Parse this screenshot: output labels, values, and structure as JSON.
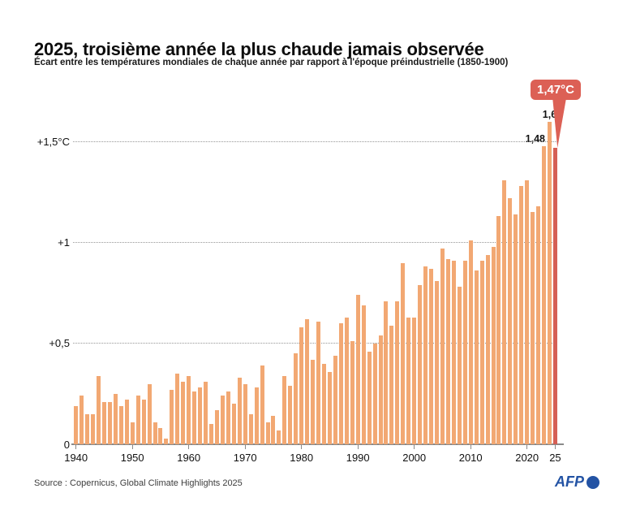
{
  "chart_data": {
    "type": "bar",
    "title": "2025, troisième année la plus chaude jamais observée",
    "subtitle": "Écart entre les températures mondiales de chaque année par rapport à l'époque préindustrielle (1850-1900)",
    "unit": "°C",
    "start_year": 1940,
    "end_year": 2025,
    "values": [
      0.19,
      0.24,
      0.15,
      0.15,
      0.34,
      0.21,
      0.21,
      0.25,
      0.19,
      0.22,
      0.11,
      0.24,
      0.22,
      0.3,
      0.11,
      0.08,
      0.03,
      0.27,
      0.35,
      0.31,
      0.34,
      0.26,
      0.28,
      0.31,
      0.1,
      0.17,
      0.24,
      0.26,
      0.2,
      0.33,
      0.3,
      0.15,
      0.28,
      0.39,
      0.11,
      0.14,
      0.07,
      0.34,
      0.29,
      0.45,
      0.58,
      0.62,
      0.42,
      0.61,
      0.4,
      0.36,
      0.44,
      0.6,
      0.63,
      0.51,
      0.74,
      0.69,
      0.46,
      0.5,
      0.54,
      0.71,
      0.59,
      0.71,
      0.9,
      0.63,
      0.63,
      0.79,
      0.88,
      0.87,
      0.81,
      0.97,
      0.92,
      0.91,
      0.78,
      0.91,
      1.01,
      0.86,
      0.91,
      0.94,
      0.98,
      1.13,
      1.31,
      1.22,
      1.14,
      1.28,
      1.31,
      1.15,
      1.18,
      1.48,
      1.6,
      1.47
    ],
    "ylim": [
      0,
      1.65
    ],
    "yticks": [
      {
        "value": 0,
        "label": "0"
      },
      {
        "value": 0.5,
        "label": "+0,5"
      },
      {
        "value": 1,
        "label": "+1"
      },
      {
        "value": 1.5,
        "label": "+1,5°C"
      }
    ],
    "xticks": [
      {
        "year": 1940,
        "label": "1940"
      },
      {
        "year": 1950,
        "label": "1950"
      },
      {
        "year": 1960,
        "label": "1960"
      },
      {
        "year": 1970,
        "label": "1970"
      },
      {
        "year": 1980,
        "label": "1980"
      },
      {
        "year": 1990,
        "label": "1990"
      },
      {
        "year": 2000,
        "label": "2000"
      },
      {
        "year": 2010,
        "label": "2010"
      },
      {
        "year": 2020,
        "label": "2020"
      },
      {
        "year": 2025,
        "label": "25"
      }
    ],
    "grid": "dotted horizontal lines",
    "legend": "none",
    "highlight_year": 2025,
    "annotations": {
      "peak_2024": "1,6",
      "second_2023": "1,48",
      "callout_2025": "1,47°C"
    }
  },
  "footer": {
    "source": "Source : Copernicus, Global Climate Highlights 2025",
    "afp_text": "AFP"
  },
  "colors": {
    "bar": "#F2A873",
    "bar_highlight": "#D55F55",
    "callout_bg": "#DC6055",
    "callout_text": "#FFFFFF",
    "grid": "#969696",
    "axis": "#8A8A8A",
    "text": "#111111",
    "source_text": "#3D3D3D",
    "afp_blue": "#2353A4"
  }
}
